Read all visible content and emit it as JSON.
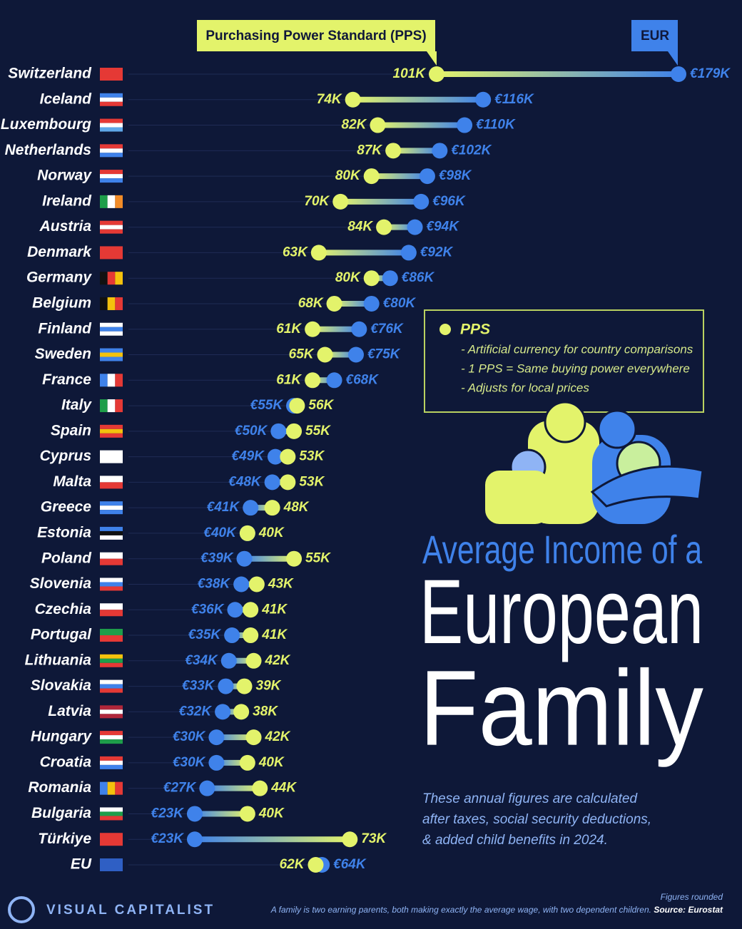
{
  "chart_data": {
    "type": "dumbbell",
    "title_lines": [
      "Average Income of a",
      "European",
      "Family"
    ],
    "description_lines": [
      "These annual figures are calculated",
      "after taxes, social security deductions,",
      "& added child benefits in 2024."
    ],
    "info_box": {
      "title": "PPS",
      "items": [
        "- Artificial currency for country comparisons",
        "- 1 PPS = Same buying power everywhere",
        "- Adjusts for local prices"
      ]
    },
    "categories": [
      "Switzerland",
      "Iceland",
      "Luxembourg",
      "Netherlands",
      "Norway",
      "Ireland",
      "Austria",
      "Denmark",
      "Germany",
      "Belgium",
      "Finland",
      "Sweden",
      "France",
      "Italy",
      "Spain",
      "Cyprus",
      "Malta",
      "Greece",
      "Estonia",
      "Poland",
      "Slovenia",
      "Czechia",
      "Portugal",
      "Lithuania",
      "Slovakia",
      "Latvia",
      "Hungary",
      "Croatia",
      "Romania",
      "Bulgaria",
      "Türkiye",
      "EU"
    ],
    "series": [
      {
        "name": "Purchasing Power Standard (PPS)",
        "color": "#e3f36b",
        "values": [
          101000,
          74000,
          82000,
          87000,
          80000,
          70000,
          84000,
          63000,
          80000,
          68000,
          61000,
          65000,
          61000,
          56000,
          55000,
          53000,
          53000,
          48000,
          40000,
          55000,
          43000,
          41000,
          41000,
          42000,
          39000,
          38000,
          42000,
          40000,
          44000,
          40000,
          73000,
          62000
        ],
        "value_labels": [
          "101K",
          "74K",
          "82K",
          "87K",
          "80K",
          "70K",
          "84K",
          "63K",
          "80K",
          "68K",
          "61K",
          "65K",
          "61K",
          "56K",
          "55K",
          "53K",
          "53K",
          "48K",
          "40K",
          "55K",
          "43K",
          "41K",
          "41K",
          "42K",
          "39K",
          "38K",
          "42K",
          "40K",
          "44K",
          "40K",
          "73K",
          "62K"
        ]
      },
      {
        "name": "EUR",
        "color": "#3f82ea",
        "values": [
          179000,
          116000,
          110000,
          102000,
          98000,
          96000,
          94000,
          92000,
          86000,
          80000,
          76000,
          75000,
          68000,
          55000,
          50000,
          49000,
          48000,
          41000,
          40000,
          39000,
          38000,
          36000,
          35000,
          34000,
          33000,
          32000,
          30000,
          30000,
          27000,
          23000,
          23000,
          64000
        ],
        "value_labels": [
          "€179K",
          "€116K",
          "€110K",
          "€102K",
          "€98K",
          "€96K",
          "€94K",
          "€92K",
          "€86K",
          "€80K",
          "€76K",
          "€75K",
          "€68K",
          "€55K",
          "€50K",
          "€49K",
          "€48K",
          "€41K",
          "€40K",
          "€39K",
          "€38K",
          "€36K",
          "€35K",
          "€34K",
          "€33K",
          "€32K",
          "€30K",
          "€30K",
          "€27K",
          "€23K",
          "€23K",
          "€64K"
        ]
      }
    ],
    "brand": "VISUAL CAPITALIST",
    "rounding_note": "Figures rounded",
    "footnote": "A family is two earning parents, both making exactly the average wage, with two dependent children.",
    "source": "Source: Eurostat"
  }
}
